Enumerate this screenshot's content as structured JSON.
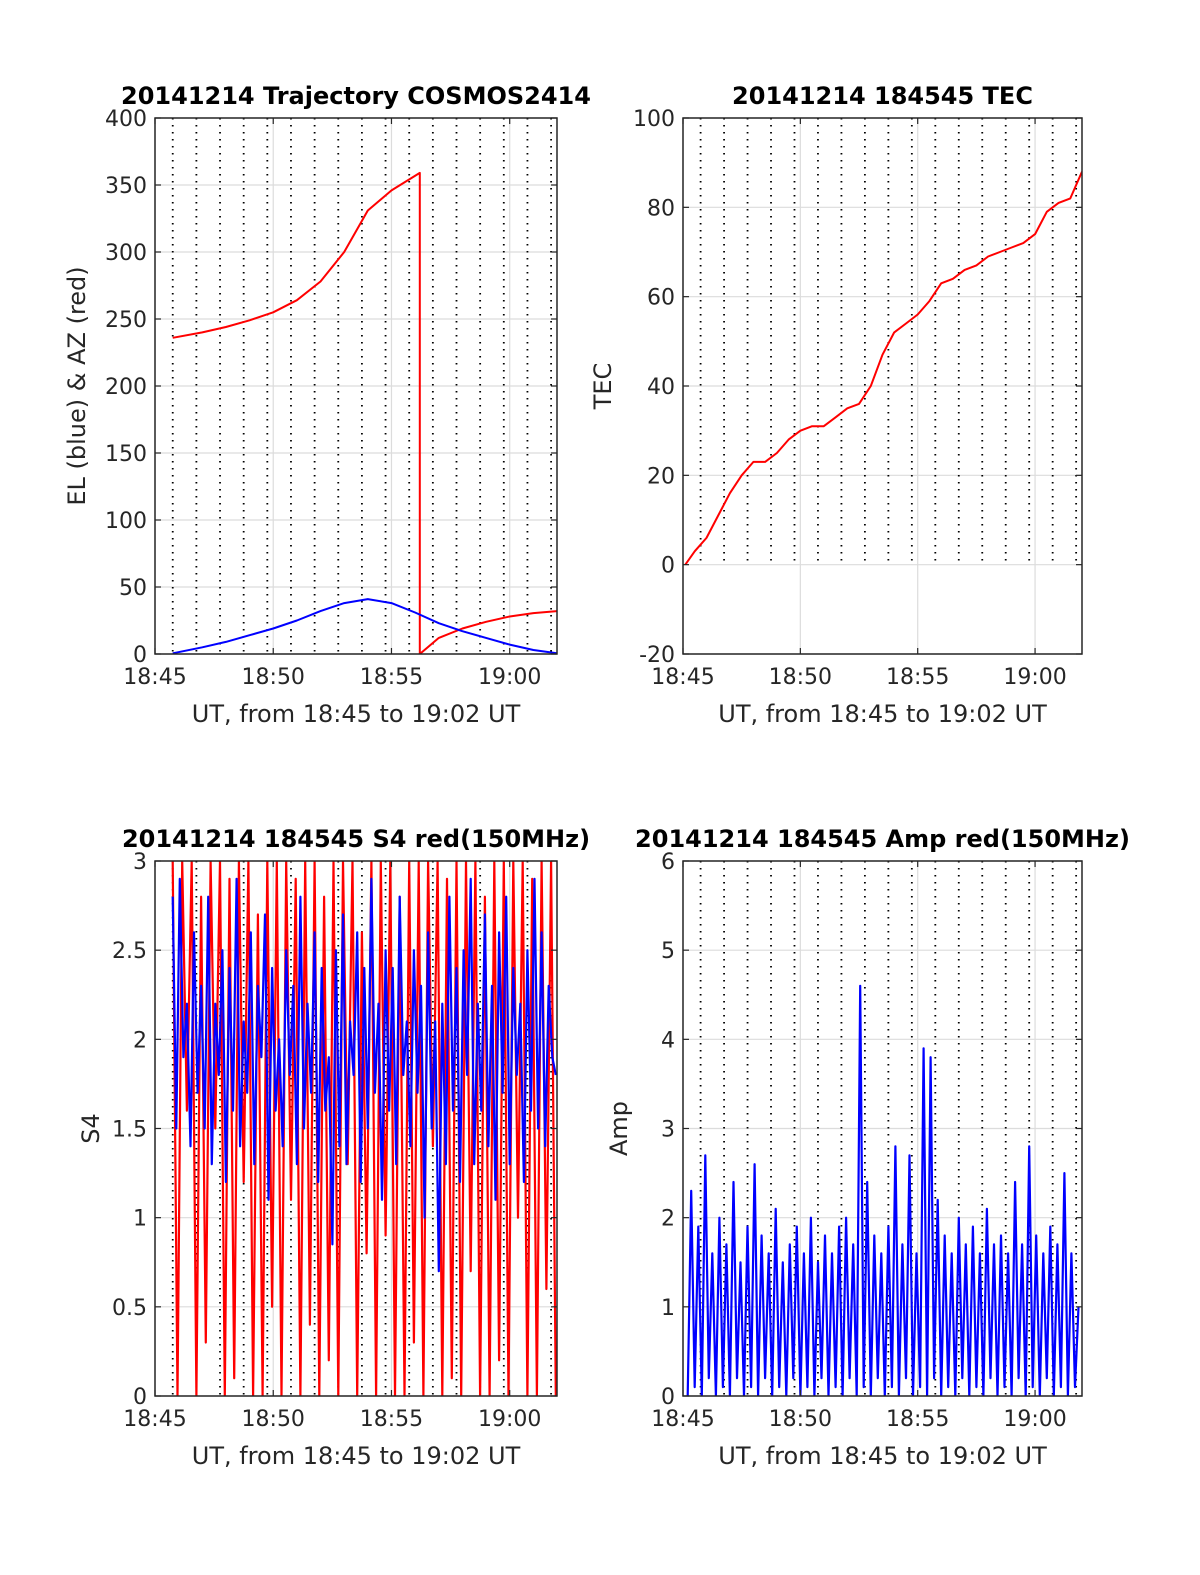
{
  "chart_data": [
    {
      "id": "trajectory",
      "type": "line",
      "title": "20141214 Trajectory COSMOS2414",
      "xlabel": "UT, from 18:45 to 19:02 UT",
      "ylabel": "EL (blue) & AZ (red)",
      "xlim": [
        0,
        17
      ],
      "ylim": [
        0,
        400
      ],
      "xticks": [
        {
          "v": 0,
          "label": "18:45"
        },
        {
          "v": 5,
          "label": "18:50"
        },
        {
          "v": 10,
          "label": "18:55"
        },
        {
          "v": 15,
          "label": "19:00"
        }
      ],
      "yticks": [
        {
          "v": 0,
          "label": "0"
        },
        {
          "v": 50,
          "label": "50"
        },
        {
          "v": 100,
          "label": "100"
        },
        {
          "v": 150,
          "label": "150"
        },
        {
          "v": 200,
          "label": "200"
        },
        {
          "v": 250,
          "label": "250"
        },
        {
          "v": 300,
          "label": "300"
        },
        {
          "v": 350,
          "label": "350"
        },
        {
          "v": 400,
          "label": "400"
        }
      ],
      "grid": true,
      "dotted_vlines": [
        0.75,
        1.75,
        2.75,
        3.75,
        4.75,
        5.75,
        6.75,
        7.75,
        8.75,
        9.75,
        10.75,
        11.75,
        12.75,
        13.75,
        14.75,
        15.75,
        16.75
      ],
      "series": [
        {
          "color": "#ff0000",
          "x": [
            0.75,
            2,
            3,
            4,
            5,
            6,
            7,
            8,
            9,
            10,
            11.2,
            11.2,
            11.2,
            12,
            13,
            14,
            15,
            16,
            17
          ],
          "y": [
            236,
            240,
            244,
            249,
            255,
            264,
            278,
            300,
            331,
            346,
            359,
            0,
            0,
            12,
            19,
            24,
            28,
            30.5,
            32
          ]
        },
        {
          "color": "#0000ff",
          "x": [
            0.75,
            2,
            3,
            4,
            5,
            6,
            7,
            8,
            9,
            10,
            11,
            12,
            13,
            14,
            15,
            16,
            17
          ],
          "y": [
            0.5,
            5,
            9,
            14,
            19,
            25,
            32,
            38,
            41,
            38,
            31,
            23,
            17,
            12,
            7,
            3,
            0.5
          ]
        }
      ]
    },
    {
      "id": "tec",
      "type": "line",
      "title": "20141214 184545 TEC",
      "xlabel": "UT, from 18:45 to 19:02 UT",
      "ylabel": "TEC",
      "xlim": [
        0,
        17
      ],
      "ylim": [
        -20,
        100
      ],
      "xticks": [
        {
          "v": 0,
          "label": "18:45"
        },
        {
          "v": 5,
          "label": "18:50"
        },
        {
          "v": 10,
          "label": "18:55"
        },
        {
          "v": 15,
          "label": "19:00"
        }
      ],
      "yticks": [
        {
          "v": -20,
          "label": "-20"
        },
        {
          "v": 0,
          "label": "0"
        },
        {
          "v": 20,
          "label": "20"
        },
        {
          "v": 40,
          "label": "40"
        },
        {
          "v": 60,
          "label": "60"
        },
        {
          "v": 80,
          "label": "80"
        },
        {
          "v": 100,
          "label": "100"
        }
      ],
      "grid": true,
      "dotted_vlines": [
        0.75,
        1.75,
        2.75,
        3.75,
        4.75,
        5.75,
        6.75,
        7.75,
        8.75,
        9.75,
        10.75,
        11.75,
        12.75,
        13.75,
        14.75,
        15.75,
        16.75
      ],
      "dotted_vlines_ymin": 0,
      "series": [
        {
          "color": "#ff0000",
          "x": [
            0.1,
            0.5,
            1,
            1.5,
            2,
            2.5,
            3,
            3.5,
            4,
            4.5,
            5,
            5.5,
            6,
            6.5,
            7,
            7.5,
            8,
            8.5,
            9,
            9.5,
            10,
            10.5,
            11,
            11.5,
            12,
            12.5,
            13,
            13.5,
            14,
            14.5,
            15,
            15.5,
            16,
            16.5,
            17
          ],
          "y": [
            0,
            3,
            6,
            11,
            16,
            20,
            23,
            23,
            25,
            28,
            30,
            31,
            31,
            33,
            35,
            36,
            40,
            47,
            52,
            54,
            56,
            59,
            63,
            64,
            66,
            67,
            69,
            70,
            71,
            72,
            74,
            79,
            81,
            82,
            88
          ]
        }
      ]
    },
    {
      "id": "s4",
      "type": "line",
      "title": "20141214 184545 S4 red(150MHz)",
      "xlabel": "UT, from 18:45 to 19:02 UT",
      "ylabel": "S4",
      "xlim": [
        0,
        17
      ],
      "ylim": [
        0,
        3
      ],
      "xticks": [
        {
          "v": 0,
          "label": "18:45"
        },
        {
          "v": 5,
          "label": "18:50"
        },
        {
          "v": 10,
          "label": "18:55"
        },
        {
          "v": 15,
          "label": "19:00"
        }
      ],
      "yticks": [
        {
          "v": 0,
          "label": "0"
        },
        {
          "v": 0.5,
          "label": "0.5"
        },
        {
          "v": 1,
          "label": "1"
        },
        {
          "v": 1.5,
          "label": "1.5"
        },
        {
          "v": 2,
          "label": "2"
        },
        {
          "v": 2.5,
          "label": "2.5"
        },
        {
          "v": 3,
          "label": "3"
        }
      ],
      "grid": true,
      "dotted_vlines": [
        0.75,
        1.75,
        2.75,
        3.75,
        4.75,
        5.75,
        6.75,
        7.75,
        8.75,
        9.75,
        10.75,
        11.75,
        12.75,
        13.75,
        14.75,
        15.75,
        16.75
      ],
      "series": [
        {
          "color": "#ff0000",
          "x": [
            0.75,
            0.95,
            1.15,
            1.35,
            1.55,
            1.75,
            1.95,
            2.15,
            2.35,
            2.55,
            2.75,
            2.95,
            3.15,
            3.35,
            3.55,
            3.75,
            3.95,
            4.15,
            4.35,
            4.55,
            4.75,
            4.95,
            5.15,
            5.35,
            5.55,
            5.75,
            5.95,
            6.15,
            6.35,
            6.55,
            6.75,
            6.95,
            7.15,
            7.35,
            7.55,
            7.75,
            7.95,
            8.15,
            8.35,
            8.55,
            8.75,
            8.95,
            9.15,
            9.35,
            9.55,
            9.75,
            9.95,
            10.15,
            10.35,
            10.55,
            10.75,
            10.95,
            11.15,
            11.35,
            11.55,
            11.75,
            11.95,
            12.15,
            12.35,
            12.55,
            12.75,
            12.95,
            13.15,
            13.35,
            13.55,
            13.75,
            13.95,
            14.15,
            14.35,
            14.55,
            14.75,
            14.95,
            15.15,
            15.35,
            15.55,
            15.75,
            15.95,
            16.15,
            16.35,
            16.55,
            16.75,
            16.95
          ],
          "y": [
            3,
            0,
            3,
            1.6,
            3,
            0,
            2.8,
            0.3,
            3,
            1.5,
            3,
            0,
            2.9,
            0.1,
            3,
            1.2,
            3,
            0,
            2.7,
            0,
            3,
            0.5,
            3,
            0,
            3,
            1.1,
            2.9,
            0,
            3,
            0.4,
            3,
            0,
            2.8,
            0.2,
            3,
            0,
            3,
            1.3,
            3,
            0,
            2.6,
            0.8,
            3,
            0,
            3,
            0.9,
            3,
            0,
            2.8,
            0,
            3,
            0.3,
            3,
            0,
            3,
            1.4,
            3,
            0,
            2.9,
            0.1,
            3,
            0,
            3,
            0.7,
            3,
            0,
            2.8,
            0,
            3,
            0.2,
            3,
            0,
            3,
            1.0,
            3,
            0,
            2.9,
            0,
            3,
            0.6,
            3,
            0
          ]
        },
        {
          "color": "#0000ff",
          "x": [
            0.75,
            0.9,
            1.05,
            1.2,
            1.35,
            1.5,
            1.65,
            1.8,
            1.95,
            2.1,
            2.25,
            2.4,
            2.55,
            2.7,
            2.85,
            3.0,
            3.15,
            3.3,
            3.45,
            3.6,
            3.75,
            3.9,
            4.05,
            4.2,
            4.35,
            4.5,
            4.65,
            4.8,
            4.95,
            5.1,
            5.25,
            5.4,
            5.55,
            5.7,
            5.85,
            6.0,
            6.15,
            6.3,
            6.45,
            6.6,
            6.75,
            6.9,
            7.05,
            7.2,
            7.35,
            7.5,
            7.65,
            7.8,
            7.95,
            8.1,
            8.25,
            8.4,
            8.55,
            8.7,
            8.85,
            9.0,
            9.15,
            9.3,
            9.45,
            9.6,
            9.75,
            9.9,
            10.05,
            10.2,
            10.35,
            10.5,
            10.65,
            10.8,
            10.95,
            11.1,
            11.25,
            11.4,
            11.55,
            11.7,
            11.85,
            12.0,
            12.15,
            12.3,
            12.45,
            12.6,
            12.75,
            12.9,
            13.05,
            13.2,
            13.35,
            13.5,
            13.65,
            13.8,
            13.95,
            14.1,
            14.25,
            14.4,
            14.55,
            14.7,
            14.85,
            15.0,
            15.15,
            15.3,
            15.45,
            15.6,
            15.75,
            15.9,
            16.05,
            16.2,
            16.35,
            16.5,
            16.65,
            16.8,
            16.95
          ],
          "y": [
            2.8,
            1.5,
            2.9,
            1.9,
            2.2,
            1.4,
            2.6,
            1.7,
            2.3,
            1.5,
            2.8,
            1.3,
            2.2,
            1.8,
            2.5,
            1.2,
            2.4,
            1.6,
            2.9,
            1.4,
            2.1,
            1.7,
            2.6,
            1.3,
            2.3,
            1.9,
            2.7,
            1.1,
            2.4,
            1.6,
            2.0,
            1.4,
            2.5,
            1.8,
            2.3,
            1.3,
            2.8,
            1.5,
            2.2,
            1.7,
            2.6,
            1.2,
            2.4,
            1.6,
            1.9,
            0.85,
            2.5,
            1.4,
            2.7,
            1.3,
            2.1,
            1.8,
            2.6,
            1.2,
            2.4,
            1.5,
            2.9,
            1.7,
            2.2,
            1.1,
            2.5,
            1.6,
            2.4,
            1.3,
            2.8,
            1.8,
            2.1,
            1.4,
            2.5,
            1.7,
            2.3,
            1.0,
            2.6,
            1.5,
            2.1,
            0.7,
            2.2,
            1.3,
            2.8,
            1.6,
            2.4,
            1.2,
            2.5,
            1.8,
            2.9,
            1.3,
            2.2,
            1.6,
            2.7,
            1.4,
            2.3,
            1.1,
            2.6,
            1.7,
            2.8,
            1.3,
            2.4,
            1.8,
            2.2,
            1.2,
            2.5,
            1.6,
            2.9,
            1.5,
            2.6,
            1.4,
            2.3,
            1.9,
            1.8
          ]
        }
      ]
    },
    {
      "id": "amp",
      "type": "line",
      "title": "20141214 184545 Amp red(150MHz)",
      "xlabel": "UT, from 18:45 to 19:02 UT",
      "ylabel": "Amp",
      "xlim": [
        0,
        17
      ],
      "ylim": [
        0,
        6
      ],
      "xticks": [
        {
          "v": 0,
          "label": "18:45"
        },
        {
          "v": 5,
          "label": "18:50"
        },
        {
          "v": 10,
          "label": "18:55"
        },
        {
          "v": 15,
          "label": "19:00"
        }
      ],
      "yticks": [
        {
          "v": 0,
          "label": "0"
        },
        {
          "v": 1,
          "label": "1"
        },
        {
          "v": 2,
          "label": "2"
        },
        {
          "v": 3,
          "label": "3"
        },
        {
          "v": 4,
          "label": "4"
        },
        {
          "v": 5,
          "label": "5"
        },
        {
          "v": 6,
          "label": "6"
        }
      ],
      "grid": true,
      "dotted_vlines": [
        0.75,
        1.75,
        2.75,
        3.75,
        4.75,
        5.75,
        6.75,
        7.75,
        8.75,
        9.75,
        10.75,
        11.75,
        12.75,
        13.75,
        14.75,
        15.75,
        16.75
      ],
      "series": [
        {
          "color": "#0000ff",
          "x": [
            0.2,
            0.35,
            0.5,
            0.65,
            0.8,
            0.95,
            1.1,
            1.25,
            1.4,
            1.55,
            1.7,
            1.85,
            2.0,
            2.15,
            2.3,
            2.45,
            2.6,
            2.75,
            2.9,
            3.05,
            3.2,
            3.35,
            3.5,
            3.65,
            3.8,
            3.95,
            4.1,
            4.25,
            4.4,
            4.55,
            4.7,
            4.85,
            5.0,
            5.15,
            5.3,
            5.45,
            5.6,
            5.75,
            5.9,
            6.05,
            6.2,
            6.35,
            6.5,
            6.65,
            6.8,
            6.95,
            7.1,
            7.25,
            7.4,
            7.55,
            7.7,
            7.85,
            8.0,
            8.15,
            8.3,
            8.45,
            8.6,
            8.75,
            8.9,
            9.05,
            9.2,
            9.35,
            9.5,
            9.65,
            9.8,
            9.95,
            10.1,
            10.25,
            10.4,
            10.55,
            10.7,
            10.85,
            11.0,
            11.15,
            11.3,
            11.45,
            11.6,
            11.75,
            11.9,
            12.05,
            12.2,
            12.35,
            12.5,
            12.65,
            12.8,
            12.95,
            13.1,
            13.25,
            13.4,
            13.55,
            13.7,
            13.85,
            14.0,
            14.15,
            14.3,
            14.45,
            14.6,
            14.75,
            14.9,
            15.05,
            15.2,
            15.35,
            15.5,
            15.65,
            15.8,
            15.95,
            16.1,
            16.25,
            16.4,
            16.55,
            16.7,
            16.85
          ],
          "y": [
            0,
            2.3,
            0.1,
            1.9,
            0,
            2.7,
            0.2,
            1.6,
            0,
            2.0,
            0.1,
            1.7,
            0,
            2.4,
            0.2,
            1.5,
            0,
            1.9,
            0.1,
            2.6,
            0,
            1.8,
            0.2,
            1.6,
            0,
            2.1,
            0.1,
            1.5,
            0,
            1.7,
            0.2,
            1.9,
            0,
            1.6,
            0.1,
            2.0,
            0,
            1.5,
            0.2,
            1.8,
            0,
            1.6,
            0.1,
            1.9,
            0,
            2.0,
            0.2,
            1.7,
            0,
            4.6,
            0.1,
            2.4,
            0,
            1.8,
            0.2,
            1.6,
            0,
            1.9,
            0.1,
            2.8,
            0,
            1.7,
            0.2,
            2.7,
            0,
            1.6,
            0.1,
            3.9,
            0,
            3.8,
            0.2,
            2.2,
            0,
            1.8,
            0.1,
            1.6,
            0,
            2.0,
            0.2,
            1.7,
            0,
            1.9,
            0.1,
            1.6,
            0,
            2.1,
            0.2,
            1.7,
            0,
            1.8,
            0.1,
            1.6,
            0,
            2.4,
            0.2,
            1.7,
            0,
            2.8,
            0.1,
            1.8,
            0,
            1.6,
            0.2,
            1.9,
            0,
            1.7,
            0.1,
            2.5,
            0,
            1.6,
            0.1,
            1.0
          ]
        }
      ]
    }
  ]
}
